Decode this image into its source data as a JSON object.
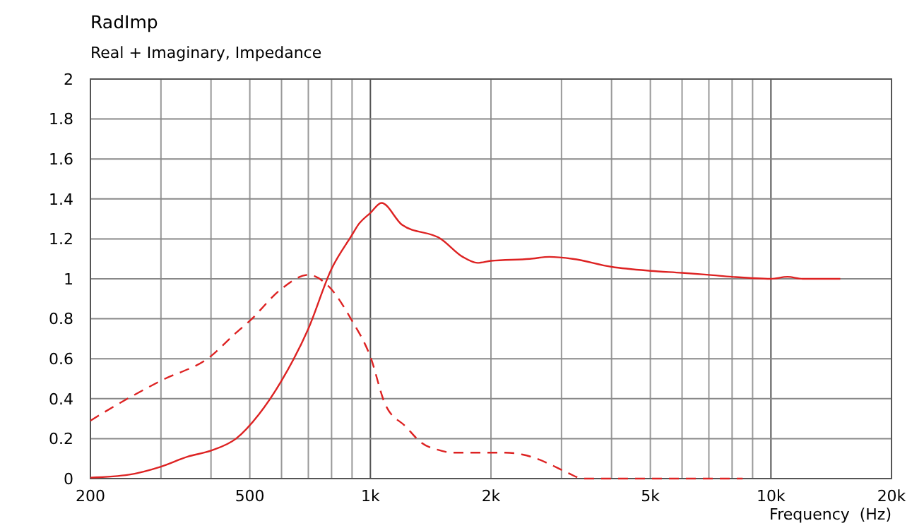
{
  "chart_data": {
    "type": "line",
    "title": "RadImp",
    "subtitle": "Real + Imaginary, Impedance",
    "xlabel": "Frequency  (Hz)",
    "log": "x",
    "grid": true,
    "xlim": [
      200,
      20000
    ],
    "xticks": [
      200,
      {
        "value": 300,
        "label": null
      },
      {
        "value": 400,
        "label": null
      },
      500,
      {
        "value": 600,
        "label": null
      },
      {
        "value": 700,
        "label": null
      },
      {
        "value": 800,
        "label": null
      },
      {
        "value": 900,
        "label": null
      },
      {
        "value": 1000,
        "label": "1k"
      },
      {
        "value": 2000,
        "label": "2k"
      },
      {
        "value": 3000,
        "label": null
      },
      {
        "value": 4000,
        "label": null
      },
      {
        "value": 5000,
        "label": "5k"
      },
      {
        "value": 6000,
        "label": null
      },
      {
        "value": 7000,
        "label": null
      },
      {
        "value": 8000,
        "label": null
      },
      {
        "value": 9000,
        "label": null
      },
      {
        "value": 10000,
        "label": "10k"
      },
      {
        "value": 20000,
        "label": "20k"
      }
    ],
    "ylim": [
      0,
      2
    ],
    "yticks": [
      0,
      0.2,
      0.4,
      0.6,
      0.8,
      1,
      1.2,
      1.4,
      1.6,
      1.8,
      2
    ],
    "series": [
      {
        "color": "#dd2222",
        "line_style": "solid",
        "x": [
          200,
          250,
          300,
          350,
          400,
          462,
          526,
          600,
          700,
          800,
          900,
          932,
          1000,
          1066,
          1200,
          1500,
          1700,
          1850,
          2000,
          2500,
          2800,
          3200,
          4000,
          5000,
          6000,
          7000,
          8000,
          10000,
          11000,
          12000,
          14900
        ],
        "values": [
          0.005,
          0.02,
          0.06,
          0.11,
          0.14,
          0.2,
          0.32,
          0.49,
          0.75,
          1.05,
          1.22,
          1.27,
          1.33,
          1.38,
          1.27,
          1.2,
          1.11,
          1.08,
          1.09,
          1.1,
          1.11,
          1.1,
          1.06,
          1.04,
          1.03,
          1.02,
          1.01,
          1.0,
          1.01,
          1.0,
          1.0
        ]
      },
      {
        "color": "#dd2222",
        "line_style": "dashed",
        "x": [
          200,
          233,
          300,
          398,
          462,
          500,
          600,
          700,
          780,
          900,
          1000,
          1090,
          1226,
          1340,
          1500,
          1600,
          1830,
          2170,
          2400,
          2600,
          2820,
          3100,
          3400,
          5000,
          8500
        ],
        "values": [
          0.29,
          0.37,
          0.49,
          0.61,
          0.73,
          0.79,
          0.95,
          1.02,
          0.97,
          0.79,
          0.61,
          0.37,
          0.26,
          0.18,
          0.14,
          0.13,
          0.13,
          0.13,
          0.12,
          0.1,
          0.07,
          0.03,
          0,
          0,
          0
        ]
      }
    ]
  }
}
